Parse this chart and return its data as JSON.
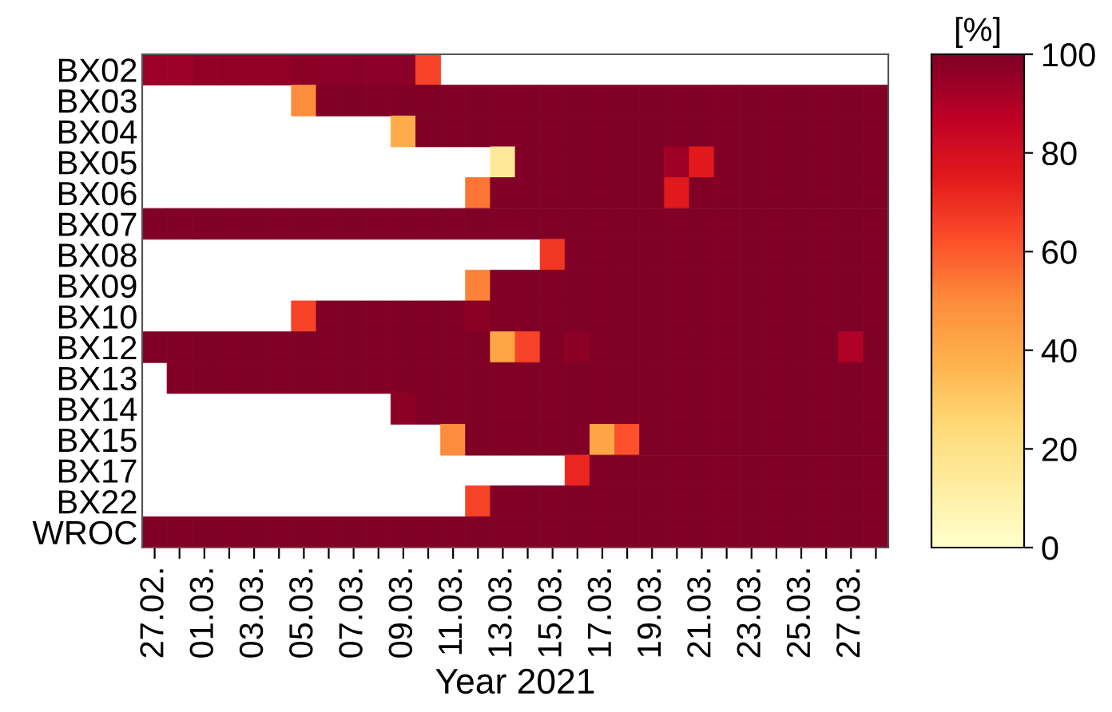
{
  "chart_data": {
    "type": "heatmap",
    "xlabel": "Year 2021",
    "clabel": "[%]",
    "clim": [
      0,
      100
    ],
    "cticks": [
      0,
      20,
      40,
      60,
      80,
      100
    ],
    "categories": [
      "27.02.",
      null,
      "01.03.",
      null,
      "03.03.",
      null,
      "05.03.",
      null,
      "07.03.",
      null,
      "09.03.",
      null,
      "11.03.",
      null,
      "13.03.",
      null,
      "15.03.",
      null,
      "17.03.",
      null,
      "19.03.",
      null,
      "21.03.",
      null,
      "23.03.",
      null,
      "25.03.",
      null,
      "27.03.",
      null
    ],
    "y_categories": [
      "BX02",
      "BX03",
      "BX04",
      "BX05",
      "BX06",
      "BX07",
      "BX08",
      "BX09",
      "BX10",
      "BX12",
      "BX13",
      "BX14",
      "BX15",
      "BX17",
      "BX22",
      "WROC"
    ],
    "cells": [
      [
        94,
        94,
        96,
        96,
        96,
        96,
        98,
        98,
        98,
        98,
        98,
        65,
        null,
        null,
        null,
        null,
        null,
        null,
        null,
        null,
        null,
        null,
        null,
        null,
        null,
        null,
        null,
        null,
        null,
        null
      ],
      [
        null,
        null,
        null,
        null,
        null,
        null,
        50,
        100,
        100,
        100,
        100,
        100,
        100,
        100,
        100,
        100,
        100,
        100,
        100,
        100,
        100,
        100,
        100,
        100,
        100,
        100,
        100,
        100,
        100,
        100
      ],
      [
        null,
        null,
        null,
        null,
        null,
        null,
        null,
        null,
        null,
        null,
        40,
        100,
        100,
        100,
        100,
        100,
        100,
        100,
        100,
        100,
        100,
        100,
        100,
        100,
        100,
        100,
        100,
        100,
        100,
        100
      ],
      [
        null,
        null,
        null,
        null,
        null,
        null,
        null,
        null,
        null,
        null,
        null,
        null,
        null,
        null,
        15,
        100,
        100,
        100,
        100,
        100,
        100,
        93,
        75,
        100,
        100,
        100,
        100,
        100,
        100,
        100
      ],
      [
        null,
        null,
        null,
        null,
        null,
        null,
        null,
        null,
        null,
        null,
        null,
        null,
        null,
        55,
        100,
        100,
        100,
        100,
        100,
        100,
        100,
        75,
        100,
        100,
        100,
        100,
        100,
        100,
        100,
        100
      ],
      [
        100,
        100,
        100,
        100,
        100,
        100,
        100,
        100,
        100,
        100,
        100,
        100,
        100,
        100,
        100,
        100,
        100,
        100,
        100,
        100,
        100,
        100,
        100,
        100,
        100,
        100,
        100,
        100,
        100,
        100
      ],
      [
        null,
        null,
        null,
        null,
        null,
        null,
        null,
        null,
        null,
        null,
        null,
        null,
        null,
        null,
        null,
        null,
        68,
        100,
        100,
        100,
        100,
        100,
        100,
        100,
        100,
        100,
        100,
        100,
        100,
        100
      ],
      [
        null,
        null,
        null,
        null,
        null,
        null,
        null,
        null,
        null,
        null,
        null,
        null,
        null,
        52,
        100,
        100,
        100,
        100,
        100,
        100,
        100,
        100,
        100,
        100,
        100,
        100,
        100,
        100,
        100,
        100
      ],
      [
        null,
        null,
        null,
        null,
        null,
        null,
        65,
        100,
        100,
        100,
        100,
        100,
        100,
        97,
        100,
        100,
        100,
        100,
        100,
        100,
        100,
        100,
        100,
        100,
        100,
        100,
        100,
        100,
        100,
        100
      ],
      [
        100,
        100,
        100,
        100,
        100,
        100,
        100,
        100,
        100,
        100,
        100,
        100,
        100,
        100,
        42,
        65,
        100,
        97,
        100,
        100,
        100,
        100,
        100,
        100,
        100,
        100,
        100,
        100,
        90,
        100
      ],
      [
        null,
        100,
        100,
        100,
        100,
        100,
        100,
        100,
        100,
        100,
        100,
        100,
        100,
        100,
        100,
        100,
        100,
        100,
        100,
        100,
        100,
        100,
        100,
        100,
        100,
        100,
        100,
        100,
        100,
        100
      ],
      [
        null,
        null,
        null,
        null,
        null,
        null,
        null,
        null,
        null,
        null,
        97,
        100,
        100,
        100,
        100,
        100,
        100,
        100,
        100,
        100,
        100,
        100,
        100,
        100,
        100,
        100,
        100,
        100,
        100,
        100
      ],
      [
        null,
        null,
        null,
        null,
        null,
        null,
        null,
        null,
        null,
        null,
        null,
        null,
        50,
        100,
        100,
        100,
        100,
        100,
        42,
        62,
        100,
        100,
        100,
        100,
        100,
        100,
        100,
        100,
        100,
        100
      ],
      [
        null,
        null,
        null,
        null,
        null,
        null,
        null,
        null,
        null,
        null,
        null,
        null,
        null,
        null,
        null,
        null,
        null,
        72,
        100,
        100,
        100,
        100,
        100,
        100,
        100,
        100,
        100,
        100,
        100,
        100
      ],
      [
        null,
        null,
        null,
        null,
        null,
        null,
        null,
        null,
        null,
        null,
        null,
        null,
        null,
        65,
        100,
        100,
        100,
        100,
        100,
        100,
        100,
        100,
        100,
        100,
        100,
        100,
        100,
        100,
        100,
        100
      ],
      [
        100,
        100,
        100,
        100,
        100,
        100,
        100,
        100,
        100,
        100,
        100,
        100,
        100,
        100,
        100,
        100,
        100,
        100,
        100,
        100,
        100,
        100,
        100,
        100,
        100,
        100,
        100,
        100,
        100,
        100
      ]
    ]
  }
}
